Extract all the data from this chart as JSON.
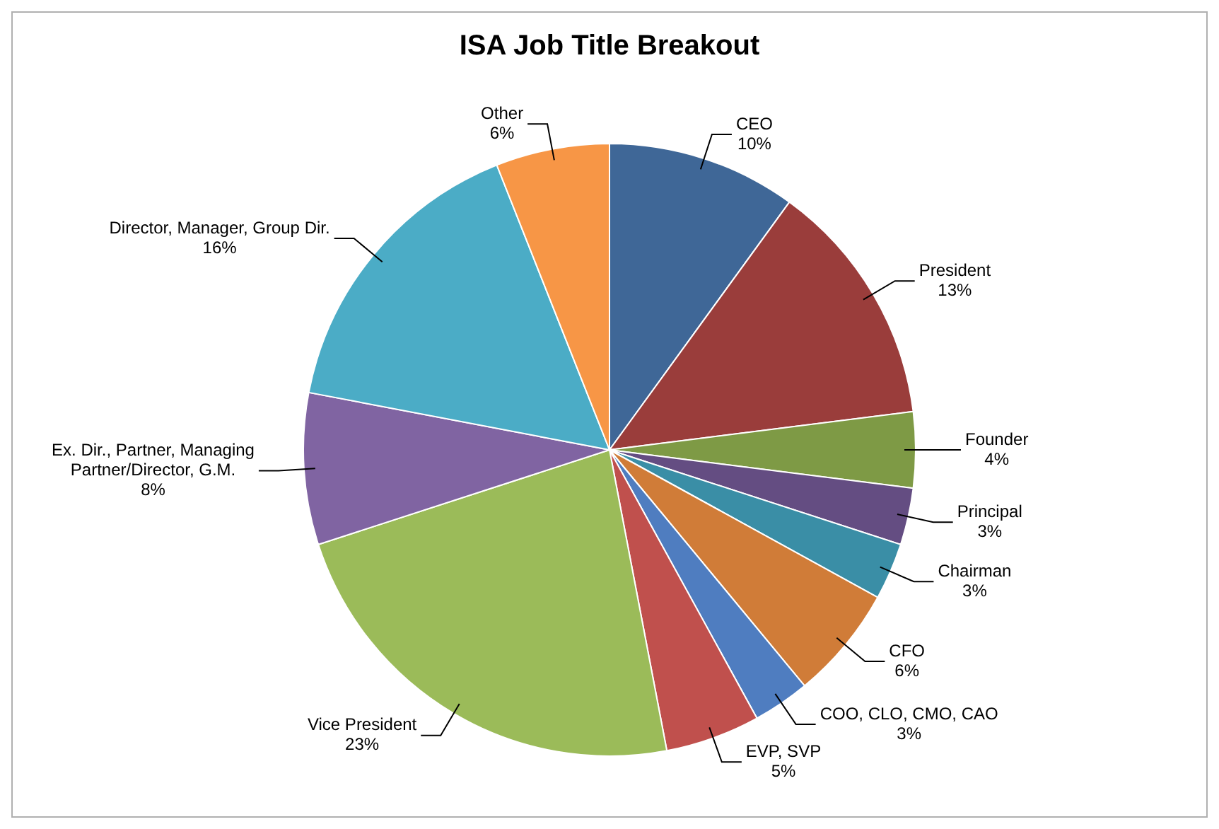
{
  "chart_data": {
    "type": "pie",
    "title": "ISA Job Title Breakout",
    "categories": [
      "CEO",
      "President",
      "Founder",
      "Principal",
      "Chairman",
      "CFO",
      "COO, CLO, CMO, CAO",
      "EVP, SVP",
      "Vice President",
      "Ex. Dir., Partner, Managing Partner/Director, G.M.",
      "Director, Manager, Group Dir.",
      "Other"
    ],
    "values": [
      10,
      13,
      4,
      3,
      3,
      6,
      3,
      5,
      23,
      8,
      16,
      6
    ],
    "colors": [
      "#3f6797",
      "#9a3d3b",
      "#7e9a45",
      "#644d82",
      "#3a8ea6",
      "#d07c38",
      "#4f7dc0",
      "#c0504d",
      "#9bbb59",
      "#8064a2",
      "#4bacc6",
      "#f79646"
    ],
    "value_labels": [
      "10%",
      "13%",
      "4%",
      "3%",
      "3%",
      "6%",
      "3%",
      "5%",
      "23%",
      "8%",
      "16%",
      "6%"
    ],
    "legend": false
  }
}
